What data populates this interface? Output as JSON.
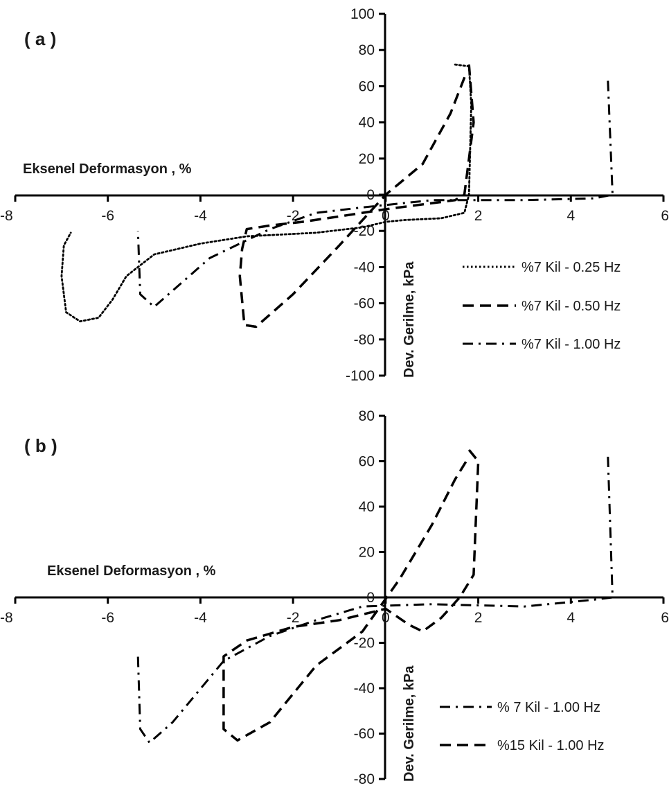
{
  "chart_data": [
    {
      "panel_label": "( a )",
      "type": "line",
      "xlabel": "Eksenel Deformasyon , %",
      "ylabel": "Dev. Gerilme, kPa",
      "xlim": [
        -8,
        6
      ],
      "ylim": [
        -100,
        100
      ],
      "x_ticks": [
        "-8",
        "-6",
        "-4",
        "-2",
        "0",
        "2",
        "4",
        "6"
      ],
      "y_ticks": [
        "100",
        "80",
        "60",
        "40",
        "20",
        "0",
        "-20",
        "-40",
        "-60",
        "-80",
        "-100"
      ],
      "grid": false,
      "legend_position": "right",
      "series": [
        {
          "name": "%7 Kil - 0.25 Hz",
          "style": "dotted",
          "points": [
            [
              1.5,
              72
            ],
            [
              1.8,
              71
            ],
            [
              1.85,
              50
            ],
            [
              1.8,
              0
            ],
            [
              1.7,
              -10
            ],
            [
              1.2,
              -13
            ],
            [
              0.4,
              -14
            ],
            [
              0,
              -15
            ],
            [
              -0.5,
              -18
            ],
            [
              -1.5,
              -21
            ],
            [
              -3,
              -23
            ],
            [
              -4,
              -27
            ],
            [
              -5,
              -33
            ],
            [
              -5.6,
              -45
            ],
            [
              -5.9,
              -58
            ],
            [
              -6.2,
              -68
            ],
            [
              -6.6,
              -70
            ],
            [
              -6.9,
              -65
            ],
            [
              -7,
              -45
            ],
            [
              -6.95,
              -28
            ],
            [
              -6.8,
              -21
            ]
          ]
        },
        {
          "name": "%7 Kil - 0.50 Hz",
          "style": "dashed",
          "points": [
            [
              1.8,
              72
            ],
            [
              1.9,
              40
            ],
            [
              1.7,
              0
            ],
            [
              1.5,
              -3
            ],
            [
              0,
              -8
            ],
            [
              -1,
              -12
            ],
            [
              -1.8,
              -15
            ],
            [
              -2.5,
              -17
            ],
            [
              -3,
              -19
            ],
            [
              -3.1,
              -30
            ],
            [
              -3.15,
              -45
            ],
            [
              -3.05,
              -72
            ],
            [
              -2.8,
              -73
            ],
            [
              -2,
              -55
            ],
            [
              -1,
              -28
            ],
            [
              0,
              0
            ],
            [
              0.8,
              17
            ],
            [
              1.4,
              45
            ],
            [
              1.75,
              68
            ]
          ]
        },
        {
          "name": "%7 Kil - 1.00 Hz",
          "style": "dashdot",
          "points": [
            [
              4.8,
              63
            ],
            [
              4.9,
              0
            ],
            [
              4.5,
              -2
            ],
            [
              3,
              -3
            ],
            [
              1,
              -3
            ],
            [
              -0.5,
              -7
            ],
            [
              -1.5,
              -10
            ],
            [
              -2.5,
              -19
            ],
            [
              -3.8,
              -35
            ],
            [
              -5,
              -62
            ],
            [
              -5.3,
              -55
            ],
            [
              -5.35,
              -20
            ]
          ]
        }
      ]
    },
    {
      "panel_label": "( b )",
      "type": "line",
      "xlabel": "Eksenel Deformasyon , %",
      "ylabel": "Dev. Gerilme, kPa",
      "xlim": [
        -8,
        6
      ],
      "ylim": [
        -80,
        80
      ],
      "x_ticks": [
        "-8",
        "-6",
        "-4",
        "-2",
        "0",
        "2",
        "4",
        "6"
      ],
      "y_ticks": [
        "80",
        "60",
        "40",
        "20",
        "0",
        "-20",
        "-40",
        "-60",
        "-80"
      ],
      "grid": false,
      "legend_position": "right",
      "series": [
        {
          "name": "% 7 Kil - 1.00 Hz",
          "style": "dashdot",
          "points": [
            [
              4.8,
              62
            ],
            [
              4.9,
              0
            ],
            [
              4.5,
              -1
            ],
            [
              3,
              -4
            ],
            [
              1,
              -3
            ],
            [
              -0.5,
              -4
            ],
            [
              -1.5,
              -10
            ],
            [
              -2.5,
              -17
            ],
            [
              -3.5,
              -28
            ],
            [
              -4.6,
              -55
            ],
            [
              -5.1,
              -64
            ],
            [
              -5.3,
              -58
            ],
            [
              -5.35,
              -26
            ]
          ]
        },
        {
          "name": "%15 Kil - 1.00 Hz",
          "style": "dashed",
          "points": [
            [
              1.8,
              65
            ],
            [
              2,
              60
            ],
            [
              1.9,
              10
            ],
            [
              1.6,
              0
            ],
            [
              1.2,
              -9
            ],
            [
              0.8,
              -15
            ],
            [
              0.5,
              -12
            ],
            [
              0,
              -5
            ],
            [
              -1,
              -10
            ],
            [
              -2,
              -13
            ],
            [
              -3,
              -19
            ],
            [
              -3.5,
              -26
            ],
            [
              -3.5,
              -58
            ],
            [
              -3.2,
              -63
            ],
            [
              -2.5,
              -55
            ],
            [
              -1.5,
              -30
            ],
            [
              -0.5,
              -15
            ],
            [
              0.3,
              8
            ],
            [
              1,
              32
            ],
            [
              1.5,
              52
            ],
            [
              1.8,
              62
            ]
          ]
        }
      ]
    }
  ]
}
